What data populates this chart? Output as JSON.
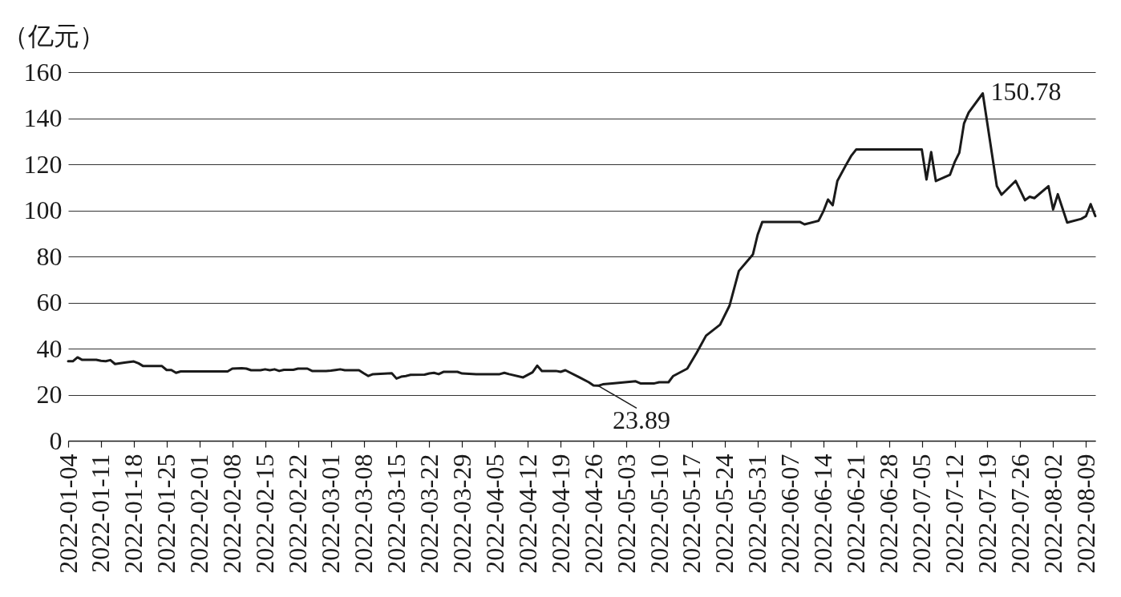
{
  "chart_data": {
    "type": "line",
    "ylabel": "（亿元）",
    "x": [
      "2022-01-04",
      "2022-01-05",
      "2022-01-06",
      "2022-01-07",
      "2022-01-10",
      "2022-01-11",
      "2022-01-12",
      "2022-01-13",
      "2022-01-14",
      "2022-01-16",
      "2022-01-18",
      "2022-01-19",
      "2022-01-20",
      "2022-01-24",
      "2022-01-25",
      "2022-01-26",
      "2022-01-27",
      "2022-01-28",
      "2022-02-07",
      "2022-02-08",
      "2022-02-10",
      "2022-02-11",
      "2022-02-12",
      "2022-02-14",
      "2022-02-15",
      "2022-02-16",
      "2022-02-17",
      "2022-02-18",
      "2022-02-19",
      "2022-02-21",
      "2022-02-22",
      "2022-02-24",
      "2022-02-25",
      "2022-02-28",
      "2022-03-01",
      "2022-03-02",
      "2022-03-03",
      "2022-03-04",
      "2022-03-07",
      "2022-03-08",
      "2022-03-09",
      "2022-03-10",
      "2022-03-14",
      "2022-03-15",
      "2022-03-16",
      "2022-03-17",
      "2022-03-18",
      "2022-03-21",
      "2022-03-22",
      "2022-03-23",
      "2022-03-24",
      "2022-03-25",
      "2022-03-28",
      "2022-03-29",
      "2022-04-01",
      "2022-04-06",
      "2022-04-07",
      "2022-04-08",
      "2022-04-11",
      "2022-04-13",
      "2022-04-14",
      "2022-04-15",
      "2022-04-18",
      "2022-04-19",
      "2022-04-20",
      "2022-04-23",
      "2022-04-25",
      "2022-04-26",
      "2022-04-27",
      "2022-04-28",
      "2022-04-30",
      "2022-05-05",
      "2022-05-06",
      "2022-05-09",
      "2022-05-10",
      "2022-05-12",
      "2022-05-13",
      "2022-05-16",
      "2022-05-18",
      "2022-05-20",
      "2022-05-23",
      "2022-05-25",
      "2022-05-27",
      "2022-05-30",
      "2022-05-31",
      "2022-06-01",
      "2022-06-09",
      "2022-06-10",
      "2022-06-13",
      "2022-06-14",
      "2022-06-15",
      "2022-06-16",
      "2022-06-17",
      "2022-06-19",
      "2022-06-20",
      "2022-06-21",
      "2022-07-05",
      "2022-07-06",
      "2022-07-07",
      "2022-07-08",
      "2022-07-11",
      "2022-07-12",
      "2022-07-13",
      "2022-07-14",
      "2022-07-15",
      "2022-07-18",
      "2022-07-21",
      "2022-07-22",
      "2022-07-25",
      "2022-07-27",
      "2022-07-28",
      "2022-07-29",
      "2022-08-01",
      "2022-08-02",
      "2022-08-03",
      "2022-08-05",
      "2022-08-08",
      "2022-08-09",
      "2022-08-10",
      "2022-08-11"
    ],
    "series": [
      {
        "color": "#1a1a1a",
        "values": [
          34.5,
          34.5,
          36.2,
          35.1,
          35.1,
          34.7,
          34.5,
          35.0,
          33.3,
          33.9,
          34.4,
          33.6,
          32.4,
          32.4,
          30.7,
          30.7,
          29.5,
          30.1,
          30.1,
          31.3,
          31.5,
          31.3,
          30.6,
          30.6,
          31.0,
          30.6,
          31.0,
          30.3,
          30.8,
          30.8,
          31.3,
          31.3,
          30.3,
          30.3,
          30.4,
          30.7,
          31.0,
          30.6,
          30.6,
          29.3,
          28.1,
          28.9,
          29.3,
          27.0,
          27.8,
          28.1,
          28.6,
          28.7,
          29.2,
          29.5,
          28.9,
          29.9,
          29.9,
          29.2,
          28.9,
          28.9,
          29.5,
          28.9,
          27.5,
          29.7,
          32.6,
          30.3,
          30.3,
          29.9,
          30.6,
          27.5,
          25.4,
          24.0,
          23.89,
          24.5,
          24.9,
          25.8,
          24.9,
          24.9,
          25.4,
          25.4,
          28.1,
          31.3,
          38.2,
          45.6,
          50.4,
          58.6,
          73.7,
          80.9,
          89.4,
          95.0,
          95.0,
          93.9,
          95.5,
          99.5,
          104.7,
          102.2,
          112.8,
          120.3,
          123.8,
          126.4,
          126.4,
          113.4,
          125.3,
          112.7,
          115.4,
          120.9,
          125.0,
          137.7,
          142.5,
          150.78,
          110.5,
          106.8,
          112.8,
          104.4,
          105.9,
          105.3,
          110.5,
          100.4,
          107.0,
          94.7,
          96.3,
          97.5,
          102.7,
          97.5
        ]
      }
    ],
    "xlim": [
      "2022-01-04",
      "2022-08-11"
    ],
    "xticks": [
      "2022-01-04",
      "2022-01-11",
      "2022-01-18",
      "2022-01-25",
      "2022-02-01",
      "2022-02-08",
      "2022-02-15",
      "2022-02-22",
      "2022-03-01",
      "2022-03-08",
      "2022-03-15",
      "2022-03-22",
      "2022-03-29",
      "2022-04-05",
      "2022-04-12",
      "2022-04-19",
      "2022-04-26",
      "2022-05-03",
      "2022-05-10",
      "2022-05-17",
      "2022-05-24",
      "2022-05-31",
      "2022-06-07",
      "2022-06-14",
      "2022-06-21",
      "2022-06-28",
      "2022-07-05",
      "2022-07-12",
      "2022-07-19",
      "2022-07-26",
      "2022-08-02",
      "2022-08-09"
    ],
    "ylim": [
      0,
      160
    ],
    "yticks": [
      0,
      20,
      40,
      60,
      80,
      100,
      120,
      140,
      160
    ],
    "grid": "y",
    "annotations": [
      {
        "text": "150.78",
        "x": "2022-07-18",
        "y": 150.78
      },
      {
        "text": "23.89",
        "x": "2022-04-27",
        "y": 23.89
      }
    ]
  }
}
